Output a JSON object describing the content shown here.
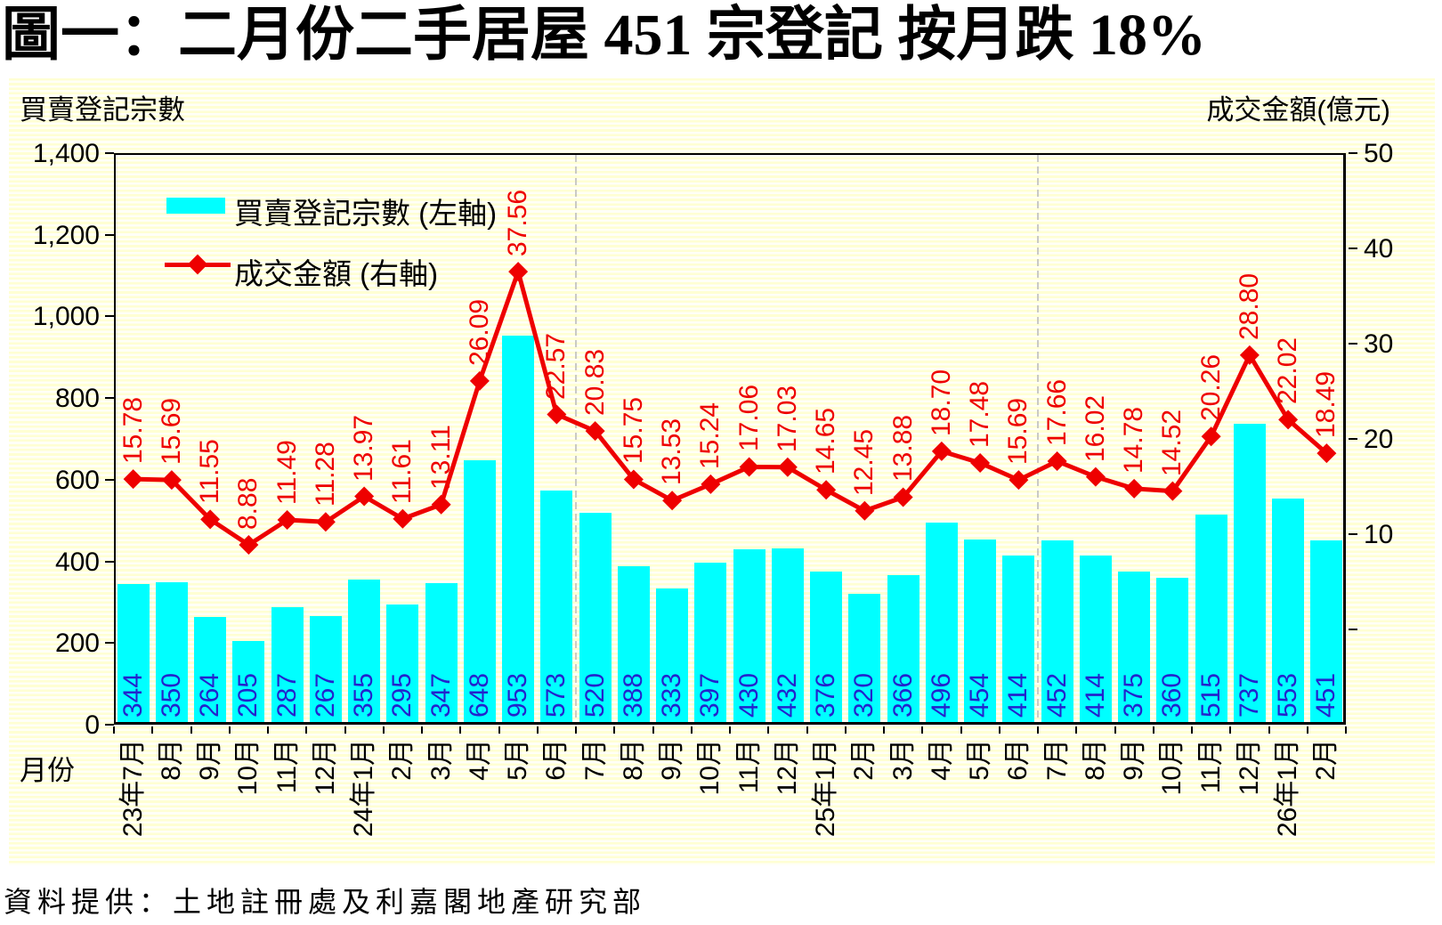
{
  "title": "圖一：二月份二手居屋 451 宗登記  按月跌 18%",
  "left_axis_title": "買賣登記宗數",
  "right_axis_title": "成交金額(億元)",
  "x_axis_title": "月份",
  "footer": "資料提供：土地註冊處及利嘉閣地產研究部",
  "legend": {
    "bar_label": "買賣登記宗數 (左軸)",
    "line_label": "成交金額 (右軸)"
  },
  "colors": {
    "bar": "#00ffff",
    "bar_value_text": "#2323cd",
    "line": "#ee0000",
    "line_value_text": "#ee0000",
    "background_stripe_yellow": "#ffffd3",
    "background_stripe_white": "#fffff7",
    "separator": "#bdbdbd",
    "axis_text": "#000000"
  },
  "chart_data": {
    "type": "bar",
    "subtype": "combo-bar-line-dual-axis",
    "categories": [
      "23年7月",
      "8月",
      "9月",
      "10月",
      "11月",
      "12月",
      "24年1月",
      "2月",
      "3月",
      "4月",
      "5月",
      "6月",
      "7月",
      "8月",
      "9月",
      "10月",
      "11月",
      "12月",
      "25年1月",
      "2月",
      "3月",
      "4月",
      "5月",
      "6月",
      "7月",
      "8月",
      "9月",
      "10月",
      "11月",
      "12月",
      "26年1月",
      "2月"
    ],
    "series": [
      {
        "name": "買賣登記宗數 (左軸)",
        "type": "bar",
        "axis": "left",
        "values": [
          344,
          350,
          264,
          205,
          287,
          267,
          355,
          295,
          347,
          648,
          953,
          573,
          520,
          388,
          333,
          397,
          430,
          432,
          376,
          320,
          366,
          496,
          454,
          414,
          452,
          414,
          375,
          360,
          515,
          737,
          553,
          451
        ]
      },
      {
        "name": "成交金額 (右軸)",
        "type": "line",
        "axis": "right",
        "marker": "diamond",
        "values": [
          15.78,
          15.69,
          11.55,
          8.88,
          11.49,
          11.28,
          13.97,
          11.61,
          13.11,
          26.09,
          37.56,
          22.57,
          20.83,
          15.75,
          13.53,
          15.24,
          17.06,
          17.03,
          14.65,
          12.45,
          13.88,
          18.7,
          17.48,
          15.69,
          17.66,
          16.02,
          14.78,
          14.52,
          20.26,
          28.8,
          22.02,
          18.49
        ]
      }
    ],
    "left_axis": {
      "min": 0,
      "max": 1400,
      "tick_step": 200,
      "tick_labels": [
        "1,400",
        "1,200",
        "1,000",
        "800",
        "600",
        "400",
        "200",
        "0"
      ]
    },
    "right_axis": {
      "min": -10,
      "max": 50,
      "tick_step": 10,
      "tick_labels": [
        "50",
        "40",
        "30",
        "20",
        "10"
      ]
    },
    "separators_after_category_index": [
      12,
      24
    ],
    "grid": "off",
    "legend_position": "inside-top-left"
  }
}
